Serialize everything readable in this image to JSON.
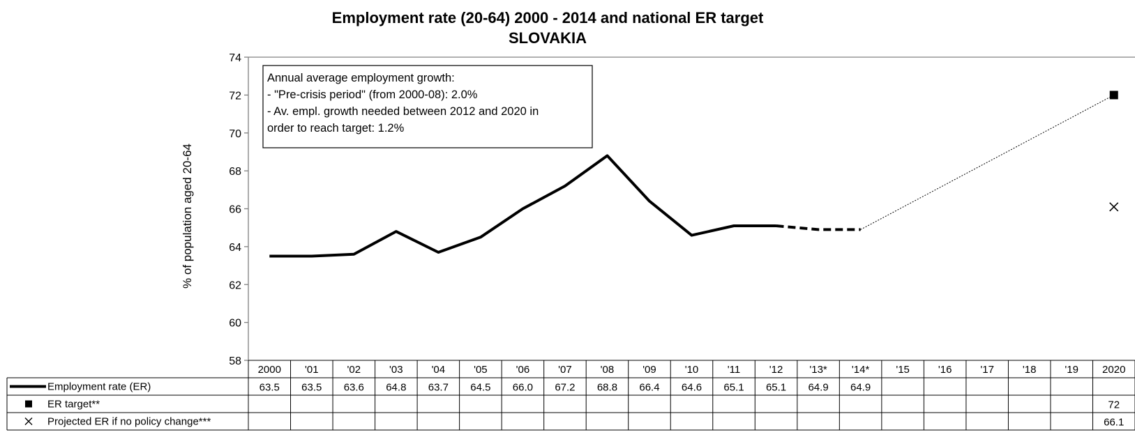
{
  "chart_data": {
    "type": "line",
    "title": "Employment rate (20-64) 2000 - 2014 and national ER target",
    "subtitle": "SLOVAKIA",
    "xlabel": "",
    "ylabel": "% of population aged 20-64",
    "ylim": [
      58,
      74
    ],
    "yticks": [
      "58",
      "60",
      "62",
      "64",
      "66",
      "68",
      "70",
      "72",
      "74"
    ],
    "categories": [
      "2000",
      "'01",
      "'02",
      "'03",
      "'04",
      "'05",
      "'06",
      "'07",
      "'08",
      "'09",
      "'10",
      "'11",
      "'12",
      "'13*",
      "'14*",
      "'15",
      "'16",
      "'17",
      "'18",
      "'19",
      "2020"
    ],
    "series": [
      {
        "name": "Employment rate (ER)",
        "values": [
          63.5,
          63.5,
          63.6,
          64.8,
          63.7,
          64.5,
          66.0,
          67.2,
          68.8,
          66.4,
          64.6,
          65.1,
          65.1,
          64.9,
          64.9,
          null,
          null,
          null,
          null,
          null,
          null
        ],
        "labels": [
          "63.5",
          "63.5",
          "63.6",
          "64.8",
          "63.7",
          "64.5",
          "66.0",
          "67.2",
          "68.8",
          "66.4",
          "64.6",
          "65.1",
          "65.1",
          "64.9",
          "64.9",
          "",
          "",
          "",
          "",
          "",
          ""
        ],
        "style": "solid line, dashed for projected years",
        "marker": "line"
      },
      {
        "name": "ER target**",
        "values": [
          null,
          null,
          null,
          null,
          null,
          null,
          null,
          null,
          null,
          null,
          null,
          null,
          null,
          null,
          null,
          null,
          null,
          null,
          null,
          null,
          72
        ],
        "labels": [
          "",
          "",
          "",
          "",
          "",
          "",
          "",
          "",
          "",
          "",
          "",
          "",
          "",
          "",
          "",
          "",
          "",
          "",
          "",
          "",
          "72"
        ],
        "marker": "square"
      },
      {
        "name": "Projected ER if no policy change***",
        "values": [
          null,
          null,
          null,
          null,
          null,
          null,
          null,
          null,
          null,
          null,
          null,
          null,
          null,
          null,
          null,
          null,
          null,
          null,
          null,
          null,
          66.1
        ],
        "labels": [
          "",
          "",
          "",
          "",
          "",
          "",
          "",
          "",
          "",
          "",
          "",
          "",
          "",
          "",
          "",
          "",
          "",
          "",
          "",
          "",
          "66.1"
        ],
        "marker": "x"
      }
    ],
    "annotation": [
      "Annual average employment growth:",
      "- \"Pre-crisis period\" (from 2000-08): 2.0%",
      "- Av. empl. growth needed between 2012 and 2020 in",
      "order to reach target: 1.2%"
    ],
    "grid": false,
    "legend_placement": "data table below plot",
    "colors": {
      "line": "#000000",
      "frame": "#808080",
      "background": "#ffffff"
    }
  }
}
